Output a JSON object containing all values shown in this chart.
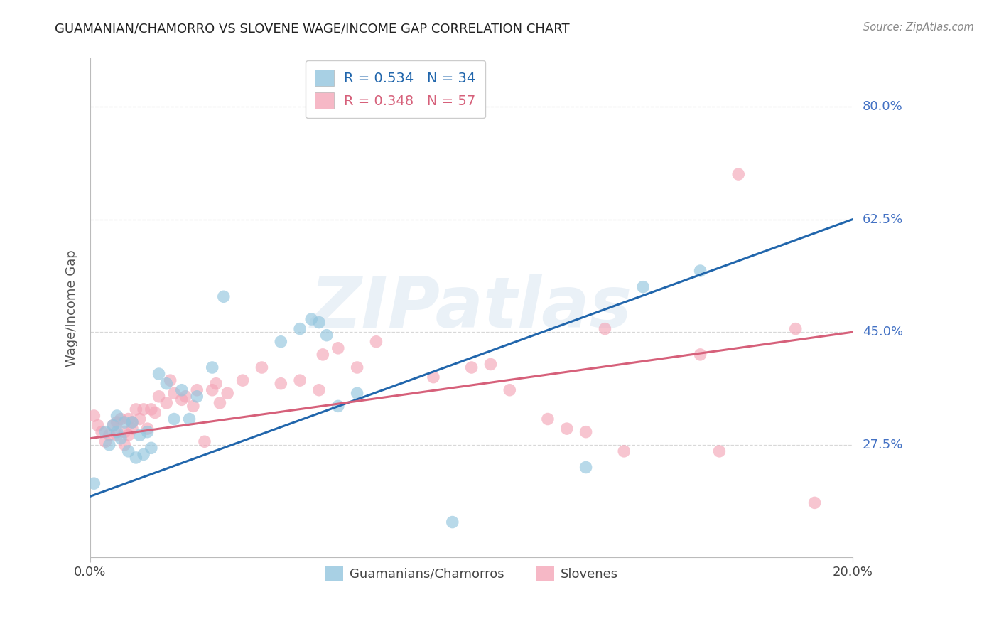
{
  "title": "GUAMANIAN/CHAMORRO VS SLOVENE WAGE/INCOME GAP CORRELATION CHART",
  "source": "Source: ZipAtlas.com",
  "ylabel": "Wage/Income Gap",
  "ytick_labels": [
    "80.0%",
    "62.5%",
    "45.0%",
    "27.5%"
  ],
  "ytick_values": [
    0.8,
    0.625,
    0.45,
    0.275
  ],
  "xmin": 0.0,
  "xmax": 0.2,
  "ymin": 0.1,
  "ymax": 0.875,
  "blue_color": "#92c5de",
  "pink_color": "#f4a6b8",
  "blue_line_color": "#2166ac",
  "pink_line_color": "#d6607a",
  "legend_blue_R": "0.534",
  "legend_blue_N": "34",
  "legend_pink_R": "0.348",
  "legend_pink_N": "57",
  "legend_label_blue": "Guamanians/Chamorros",
  "legend_label_pink": "Slovenes",
  "blue_line_x0": 0.0,
  "blue_line_y0": 0.195,
  "blue_line_x1": 0.2,
  "blue_line_y1": 0.625,
  "pink_line_x0": 0.0,
  "pink_line_y0": 0.285,
  "pink_line_x1": 0.2,
  "pink_line_y1": 0.45,
  "blue_x": [
    0.001,
    0.004,
    0.005,
    0.006,
    0.007,
    0.007,
    0.008,
    0.009,
    0.01,
    0.011,
    0.012,
    0.013,
    0.014,
    0.015,
    0.016,
    0.018,
    0.02,
    0.022,
    0.024,
    0.026,
    0.028,
    0.032,
    0.035,
    0.05,
    0.055,
    0.058,
    0.06,
    0.062,
    0.065,
    0.07,
    0.095,
    0.13,
    0.145,
    0.16
  ],
  "blue_y": [
    0.215,
    0.295,
    0.275,
    0.305,
    0.32,
    0.295,
    0.285,
    0.31,
    0.265,
    0.31,
    0.255,
    0.29,
    0.26,
    0.295,
    0.27,
    0.385,
    0.37,
    0.315,
    0.36,
    0.315,
    0.35,
    0.395,
    0.505,
    0.435,
    0.455,
    0.47,
    0.465,
    0.445,
    0.335,
    0.355,
    0.155,
    0.24,
    0.52,
    0.545
  ],
  "pink_x": [
    0.001,
    0.002,
    0.003,
    0.004,
    0.005,
    0.006,
    0.007,
    0.007,
    0.008,
    0.009,
    0.009,
    0.01,
    0.01,
    0.011,
    0.011,
    0.012,
    0.013,
    0.014,
    0.015,
    0.016,
    0.017,
    0.018,
    0.02,
    0.021,
    0.022,
    0.024,
    0.025,
    0.027,
    0.028,
    0.03,
    0.032,
    0.033,
    0.034,
    0.036,
    0.04,
    0.045,
    0.05,
    0.055,
    0.06,
    0.061,
    0.065,
    0.07,
    0.075,
    0.09,
    0.1,
    0.105,
    0.11,
    0.12,
    0.125,
    0.13,
    0.135,
    0.14,
    0.16,
    0.165,
    0.17,
    0.185,
    0.19
  ],
  "pink_y": [
    0.32,
    0.305,
    0.295,
    0.28,
    0.29,
    0.305,
    0.29,
    0.31,
    0.315,
    0.275,
    0.295,
    0.315,
    0.29,
    0.31,
    0.3,
    0.33,
    0.315,
    0.33,
    0.3,
    0.33,
    0.325,
    0.35,
    0.34,
    0.375,
    0.355,
    0.345,
    0.35,
    0.335,
    0.36,
    0.28,
    0.36,
    0.37,
    0.34,
    0.355,
    0.375,
    0.395,
    0.37,
    0.375,
    0.36,
    0.415,
    0.425,
    0.395,
    0.435,
    0.38,
    0.395,
    0.4,
    0.36,
    0.315,
    0.3,
    0.295,
    0.455,
    0.265,
    0.415,
    0.265,
    0.695,
    0.455,
    0.185
  ],
  "watermark_text": "ZIPatlas",
  "background_color": "#ffffff",
  "grid_color": "#d8d8d8"
}
